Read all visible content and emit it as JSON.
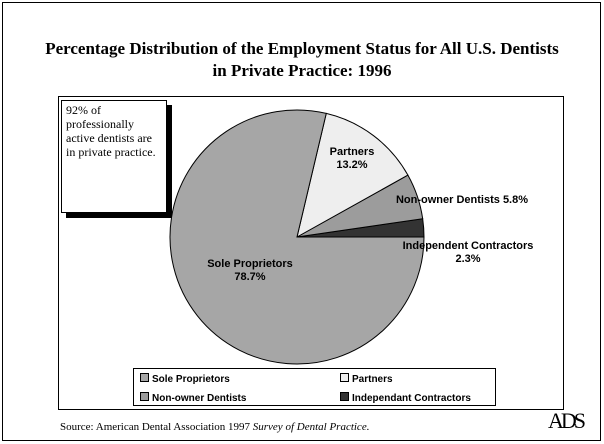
{
  "chart_data": {
    "type": "pie",
    "title": "Percentage Distribution of the Employment Status for All U.S. Dentists in Private Practice: 1996",
    "categories": [
      "Sole Proprietors",
      "Partners",
      "Non-owner Dentists",
      "Independent Contractors"
    ],
    "values": [
      78.7,
      13.2,
      5.8,
      2.3
    ],
    "value_labels": [
      "78.7%",
      "13.2%",
      "5.8%",
      "2.3%"
    ],
    "colors": [
      "#a6a6a6",
      "#eeeeee",
      "#9c9c9c",
      "#333333"
    ],
    "legend_labels": [
      "Sole Proprietors",
      "Partners",
      "Non-owner Dentists",
      "Independant Contractors"
    ],
    "legend_position": "bottom",
    "annotation": "92% of professionally active dentists are in private practice.",
    "source": {
      "text": "Source: American Dental Association 1997",
      "publication": "Survey of Dental Practice."
    },
    "logo": "ADS"
  }
}
